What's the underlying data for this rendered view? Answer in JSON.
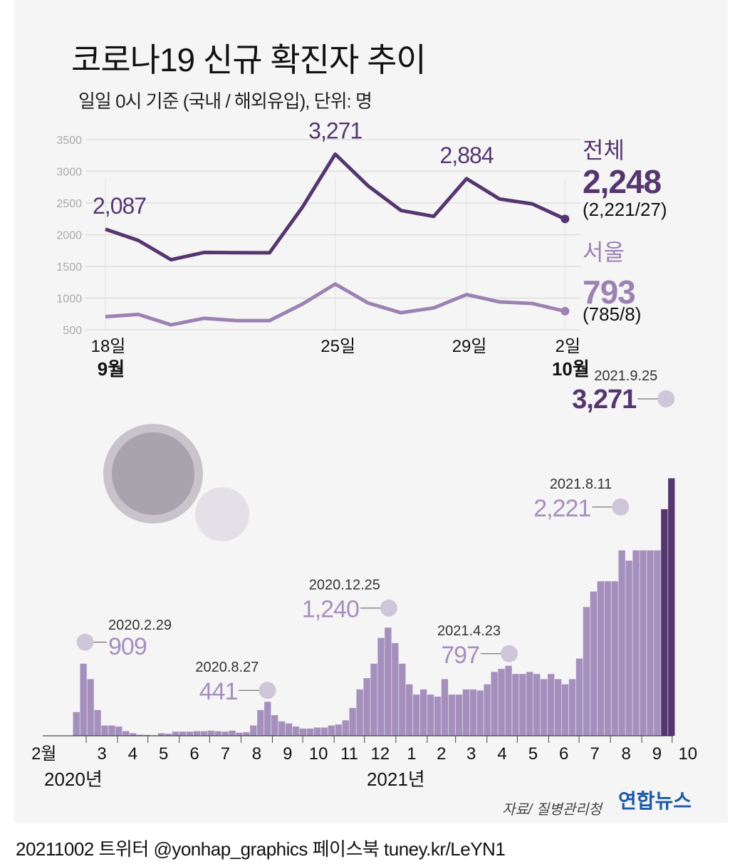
{
  "title": "코로나19 신규 확진자 추이",
  "subtitle": "일일 0시 기준 (국내 / 해외유입), 단위: 명",
  "source": "자료/ 질병관리청",
  "logo": "연합뉴스",
  "footer": "20211002 트위터 @yonhap_graphics  페이스북 tuney.kr/LeYN1",
  "colors": {
    "total": "#553670",
    "seoul": "#9c82b2",
    "bars": "#a58fbd",
    "bars_recent": "#553670",
    "background": "#f5f5f5",
    "logo": "#1a5aa6"
  },
  "chart_data": [
    {
      "type": "line",
      "ylim": [
        500,
        3500
      ],
      "yticks": [
        "3500",
        "3000",
        "2500",
        "2000",
        "1500",
        "1000",
        "500"
      ],
      "ytick_values": [
        3500,
        3000,
        2500,
        2000,
        1500,
        1000,
        500
      ],
      "x": [
        "9.18",
        "9.19",
        "9.20",
        "9.21",
        "9.22",
        "9.23",
        "9.24",
        "9.25",
        "9.26",
        "9.27",
        "9.28",
        "9.29",
        "9.30",
        "10.1",
        "10.2"
      ],
      "xtick_labels": [
        {
          "index": 0,
          "day": "18일",
          "month": "9월"
        },
        {
          "index": 7,
          "day": "25일",
          "month": ""
        },
        {
          "index": 11,
          "day": "29일",
          "month": ""
        },
        {
          "index": 14,
          "day": "2일",
          "month": "10월"
        }
      ],
      "grid": true,
      "series": [
        {
          "name": "전체",
          "values": [
            2087,
            1910,
            1605,
            1720,
            1716,
            1715,
            2434,
            3271,
            2771,
            2383,
            2289,
            2884,
            2564,
            2486,
            2248
          ],
          "latest": "2,248",
          "breakdown": "(2,221/27)",
          "labels": [
            {
              "index": 0,
              "text": "2,087"
            },
            {
              "index": 7,
              "text": "3,271"
            },
            {
              "index": 11,
              "text": "2,884"
            }
          ]
        },
        {
          "name": "서울",
          "values": [
            707,
            743,
            578,
            681,
            645,
            645,
            906,
            1222,
            923,
            769,
            845,
            1056,
            940,
            915,
            793
          ],
          "latest": "793",
          "breakdown": "(785/8)",
          "labels": []
        }
      ]
    },
    {
      "type": "bar",
      "x_start": "2020-01-20",
      "bin": "week",
      "values": [
        2,
        3,
        3,
        2,
        230,
        700,
        550,
        250,
        100,
        100,
        90,
        45,
        25,
        10,
        8,
        5,
        25,
        20,
        40,
        40,
        40,
        45,
        45,
        50,
        45,
        40,
        50,
        30,
        35,
        100,
        250,
        330,
        200,
        140,
        120,
        90,
        70,
        70,
        80,
        80,
        100,
        110,
        150,
        270,
        450,
        560,
        700,
        950,
        1050,
        900,
        700,
        500,
        400,
        450,
        400,
        380,
        550,
        400,
        400,
        450,
        450,
        440,
        500,
        620,
        650,
        680,
        600,
        600,
        620,
        600,
        550,
        600,
        550,
        500,
        550,
        750,
        1250,
        1400,
        1500,
        1500,
        1500,
        1800,
        1700,
        1800,
        1800,
        1800,
        1800,
        2200,
        2500
      ],
      "month_labels": [
        "2월",
        "3",
        "4",
        "5",
        "6",
        "7",
        "8",
        "9",
        "10",
        "11",
        "12",
        "1",
        "2",
        "3",
        "4",
        "5",
        "6",
        "7",
        "8",
        "9",
        "10"
      ],
      "year_labels": [
        {
          "text": "2020년",
          "month_index": 0
        },
        {
          "text": "2021년",
          "month_index": 11
        }
      ],
      "annotations": [
        {
          "date": "2020.2.29",
          "value": 909,
          "text": "909"
        },
        {
          "date": "2020.8.27",
          "value": 441,
          "text": "441"
        },
        {
          "date": "2020.12.25",
          "value": 1240,
          "text": "1,240"
        },
        {
          "date": "2021.4.23",
          "value": 797,
          "text": "797"
        },
        {
          "date": "2021.8.11",
          "value": 2221,
          "text": "2,221"
        },
        {
          "date": "2021.9.25",
          "value": 3271,
          "text": "3,271"
        }
      ]
    }
  ]
}
